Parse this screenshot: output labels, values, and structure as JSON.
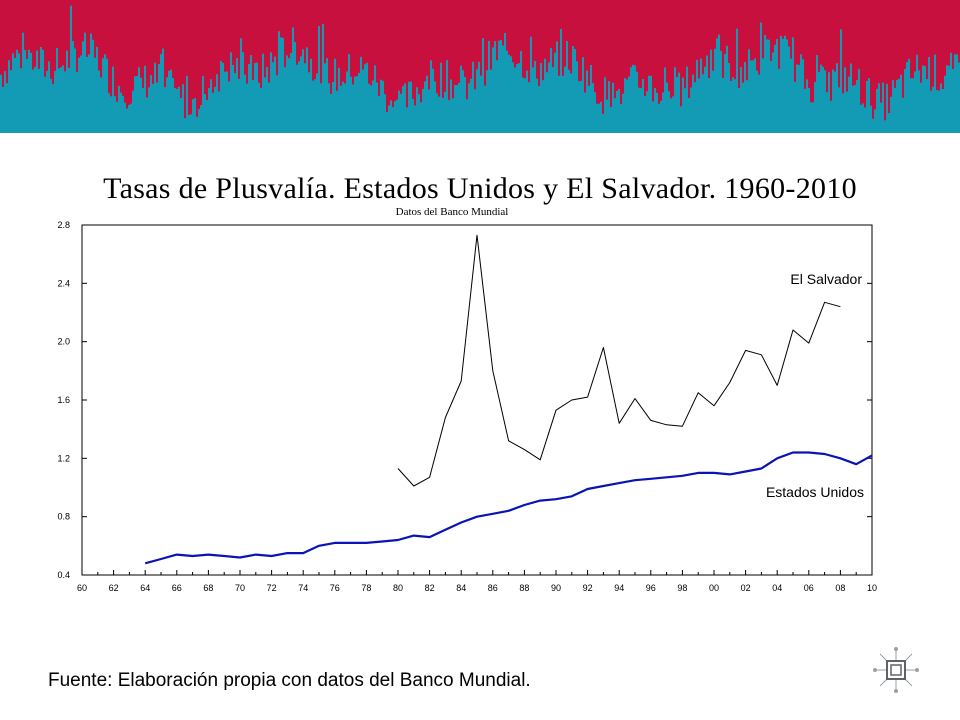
{
  "header": {
    "banner_colors": {
      "top": "#c8103e",
      "bottom": "#139bb5"
    }
  },
  "chart_data": {
    "type": "line",
    "title": "Tasas de Plusvalía. Estados Unidos y El Salvador. 1960-2010",
    "subtitle": "Datos del Banco Mundial",
    "xlabel": "",
    "ylabel": "",
    "xlim": [
      1960,
      2010
    ],
    "ylim": [
      0.4,
      2.8
    ],
    "grid": false,
    "x_ticks": [
      "60",
      "62",
      "64",
      "66",
      "68",
      "70",
      "72",
      "74",
      "76",
      "78",
      "80",
      "82",
      "84",
      "86",
      "88",
      "90",
      "92",
      "94",
      "96",
      "98",
      "00",
      "02",
      "04",
      "06",
      "08",
      "10"
    ],
    "y_ticks": [
      "0.4",
      "0.8",
      "1.2",
      "1.6",
      "2.0",
      "2.4",
      "2.8"
    ],
    "series": [
      {
        "name": "El Salvador",
        "color": "#000000",
        "x": [
          1980,
          1981,
          1982,
          1983,
          1984,
          1985,
          1986,
          1987,
          1988,
          1989,
          1990,
          1991,
          1992,
          1993,
          1994,
          1995,
          1996,
          1997,
          1998,
          1999,
          2000,
          2001,
          2002,
          2003,
          2004,
          2005,
          2006,
          2007,
          2008
        ],
        "values": [
          1.13,
          1.01,
          1.07,
          1.48,
          1.73,
          2.73,
          1.8,
          1.32,
          1.26,
          1.19,
          1.53,
          1.6,
          1.62,
          1.96,
          1.44,
          1.61,
          1.46,
          1.43,
          1.42,
          1.65,
          1.56,
          1.72,
          1.94,
          1.91,
          1.7,
          2.08,
          1.99,
          2.27,
          2.24
        ]
      },
      {
        "name": "Estados Unidos",
        "color": "#0a14b4",
        "x": [
          1964,
          1965,
          1966,
          1967,
          1968,
          1969,
          1970,
          1971,
          1972,
          1973,
          1974,
          1975,
          1976,
          1977,
          1978,
          1979,
          1980,
          1981,
          1982,
          1983,
          1984,
          1985,
          1986,
          1987,
          1988,
          1989,
          1990,
          1991,
          1992,
          1993,
          1994,
          1995,
          1996,
          1997,
          1998,
          1999,
          2000,
          2001,
          2002,
          2003,
          2004,
          2005,
          2006,
          2007,
          2008,
          2009,
          2010
        ],
        "values": [
          0.48,
          0.51,
          0.54,
          0.53,
          0.54,
          0.53,
          0.52,
          0.54,
          0.53,
          0.55,
          0.55,
          0.6,
          0.62,
          0.62,
          0.62,
          0.63,
          0.64,
          0.67,
          0.66,
          0.71,
          0.76,
          0.8,
          0.82,
          0.84,
          0.88,
          0.91,
          0.92,
          0.94,
          0.99,
          1.01,
          1.03,
          1.05,
          1.06,
          1.07,
          1.08,
          1.1,
          1.1,
          1.09,
          1.11,
          1.13,
          1.2,
          1.24,
          1.24,
          1.23,
          1.2,
          1.16,
          1.22
        ]
      }
    ],
    "annotations": [
      {
        "text": "El Salvador",
        "series": "El Salvador"
      },
      {
        "text": "Estados Unidos",
        "series": "Estados Unidos"
      }
    ]
  },
  "footer": {
    "source": "Fuente: Elaboración propia con datos del Banco Mundial."
  },
  "icons": {
    "corner_logo": "network-cube-icon"
  }
}
